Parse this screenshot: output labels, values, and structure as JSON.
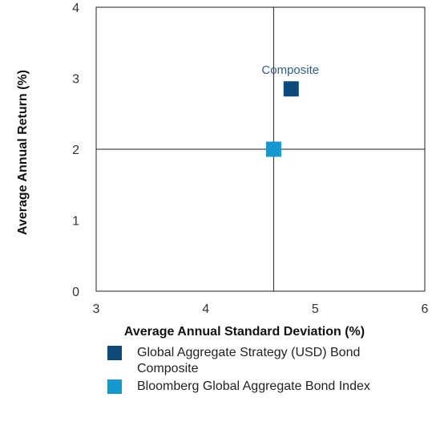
{
  "chart_data": {
    "type": "scatter",
    "xlabel": "Average Annual Standard Deviation (%)",
    "ylabel": "Average Annual Return (%)",
    "xlim": [
      3,
      6
    ],
    "ylim": [
      0,
      4
    ],
    "xticks": [
      "3",
      "4",
      "5",
      "6"
    ],
    "yticks": [
      "0",
      "1",
      "2",
      "3",
      "4"
    ],
    "reference_lines": {
      "x": 4.62,
      "y": 2.0
    },
    "grid": false,
    "legend_position": "bottom",
    "series": [
      {
        "name": "Global Aggregate Strategy (USD) Bond Composite",
        "color": "#0d4a7a",
        "x": 4.78,
        "y": 2.85,
        "label": "Composite",
        "label_color": "#2f5e8e"
      },
      {
        "name": "Bloomberg Global Aggregate Bond Index",
        "color": "#1797cf",
        "x": 4.62,
        "y": 2.0
      }
    ]
  }
}
